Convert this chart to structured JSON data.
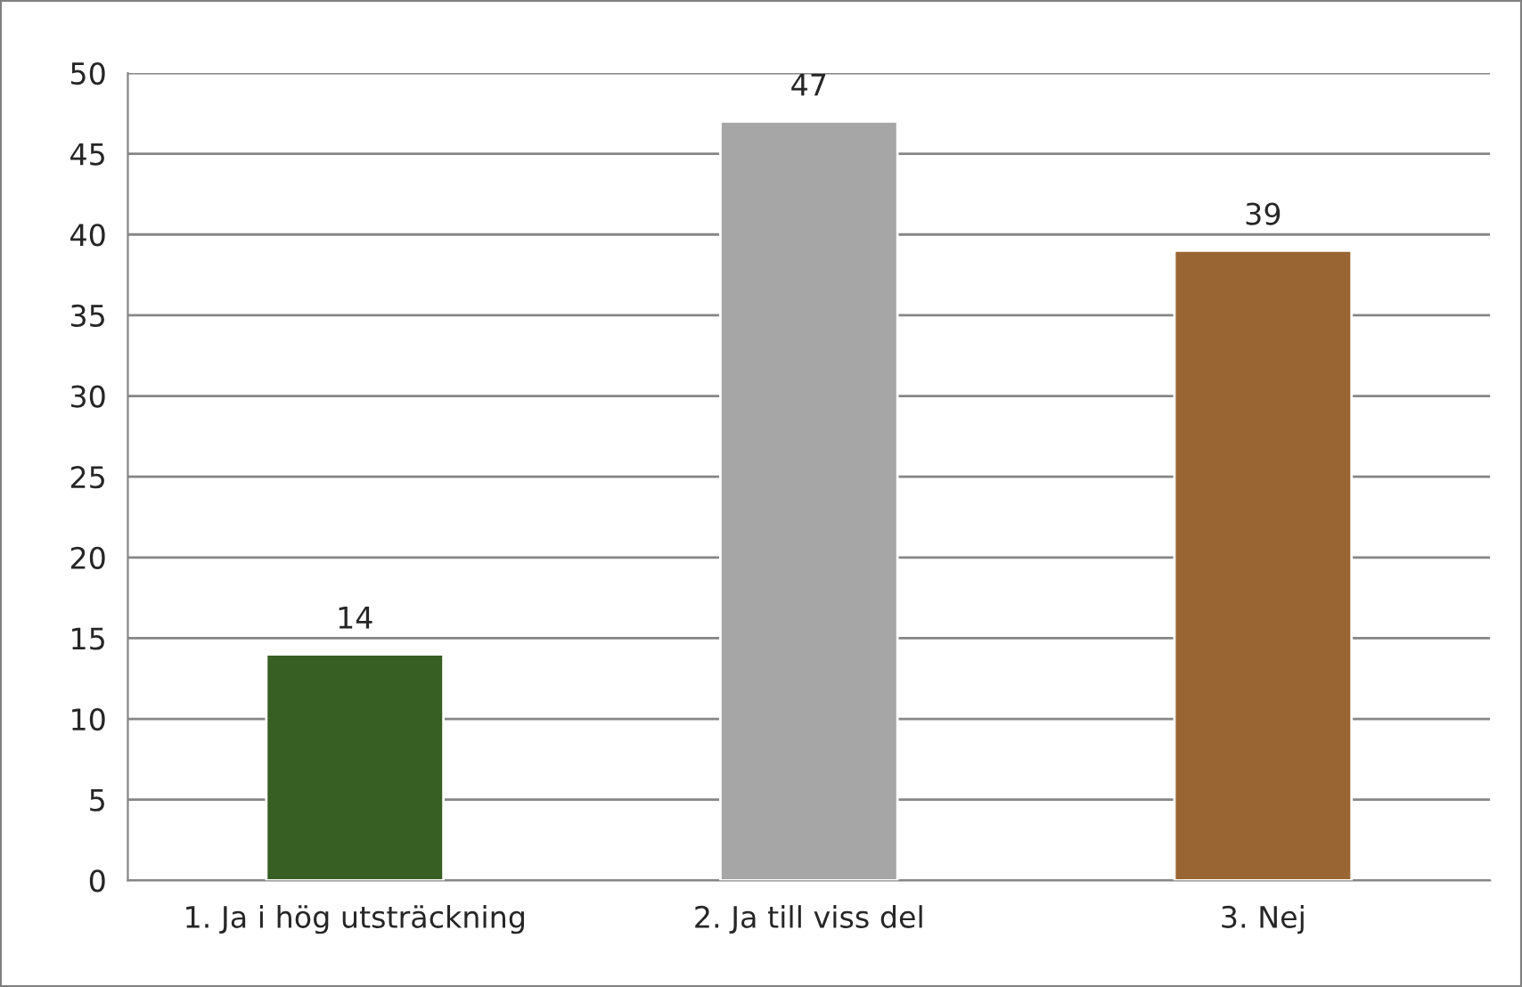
{
  "chart_data": {
    "type": "bar",
    "categories": [
      "1. Ja i hög utsträckning",
      "2. Ja till viss del",
      "3. Nej"
    ],
    "values": [
      14,
      47,
      39
    ],
    "colors": [
      "#375e23",
      "#a6a6a6",
      "#996633"
    ],
    "ylim": [
      0,
      50
    ],
    "yticks": [
      0,
      5,
      10,
      15,
      20,
      25,
      30,
      35,
      40,
      45,
      50
    ],
    "grid": "y",
    "data_labels": true,
    "legend": false
  }
}
